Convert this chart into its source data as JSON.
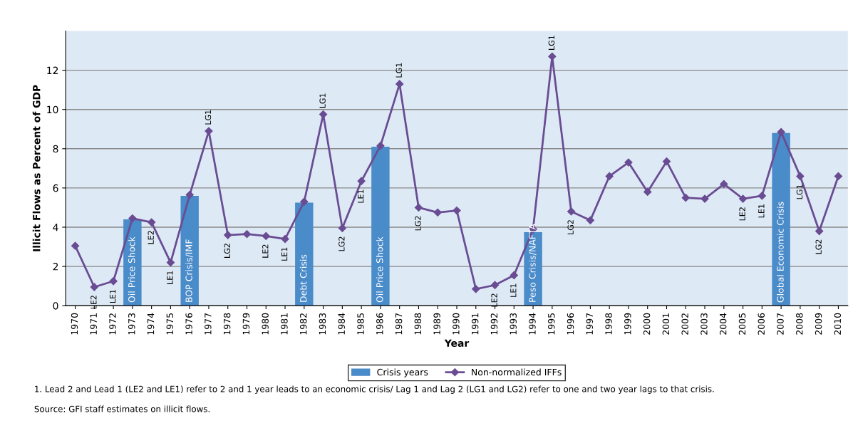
{
  "chart_data": {
    "type": "bar",
    "xlabel": "Year",
    "ylabel": "Illicit Flows as Percent of GDP",
    "categories": [
      "1970",
      "1971",
      "1972",
      "1973",
      "1974",
      "1975",
      "1976",
      "1977",
      "1978",
      "1979",
      "1980",
      "1981",
      "1982",
      "1983",
      "1984",
      "1985",
      "1986",
      "1987",
      "1988",
      "1989",
      "1990",
      "1991",
      "1992",
      "1993",
      "1994",
      "1995",
      "1996",
      "1997",
      "1998",
      "1999",
      "2000",
      "2001",
      "2002",
      "2003",
      "2004",
      "2005",
      "2006",
      "2007",
      "2008",
      "2009",
      "2010"
    ],
    "series": [
      {
        "name": "Crisis years",
        "color": "#4a8bc9",
        "values": [
          null,
          null,
          null,
          4.4,
          null,
          null,
          5.6,
          null,
          null,
          null,
          null,
          null,
          5.25,
          null,
          null,
          null,
          8.1,
          null,
          null,
          null,
          null,
          null,
          null,
          null,
          3.75,
          null,
          null,
          null,
          null,
          null,
          null,
          null,
          null,
          null,
          null,
          null,
          null,
          8.8,
          null,
          null,
          null
        ]
      },
      {
        "name": "Non-normalized IFFs",
        "type": "line",
        "color": "#6a4c93",
        "marker": "diamond",
        "values": [
          3.05,
          0.95,
          1.25,
          4.45,
          4.25,
          2.2,
          5.65,
          8.9,
          3.6,
          3.65,
          3.55,
          3.4,
          5.3,
          9.75,
          3.95,
          6.35,
          8.15,
          11.3,
          5.0,
          4.75,
          4.85,
          0.85,
          1.05,
          1.55,
          3.9,
          12.7,
          4.8,
          4.35,
          6.6,
          7.3,
          5.8,
          7.35,
          5.5,
          5.45,
          6.2,
          5.45,
          5.6,
          8.85,
          6.6,
          3.8,
          6.6
        ]
      }
    ],
    "ylim": [
      0,
      14
    ],
    "yticks": [
      0,
      2,
      4,
      6,
      8,
      10,
      12
    ],
    "grid": "y",
    "legend": "bottom",
    "annotations": [
      {
        "text": "Oil Price Shock",
        "x": "1973",
        "y": 0
      },
      {
        "text": "BOP Crisis/IMF",
        "x": "1976",
        "y": 0
      },
      {
        "text": "Debt Crisis",
        "x": "1982",
        "y": 0
      },
      {
        "text": "Oil Price Shock",
        "x": "1986",
        "y": 0
      },
      {
        "text": "Peso Crisis/NAFTA",
        "x": "1994",
        "y": 0
      },
      {
        "text": "Global Economic Crisis",
        "x": "2007",
        "y": 0
      },
      {
        "text": "LE2",
        "x": "1971",
        "y": 0.95
      },
      {
        "text": "LE1",
        "x": "1972",
        "y": 1.25
      },
      {
        "text": "LE2",
        "x": "1974",
        "y": 4.25
      },
      {
        "text": "LE1",
        "x": "1975",
        "y": 2.2
      },
      {
        "text": "LG1",
        "x": "1977",
        "y": 8.9
      },
      {
        "text": "LG2",
        "x": "1978",
        "y": 3.6
      },
      {
        "text": "LE2",
        "x": "1980",
        "y": 3.55
      },
      {
        "text": "LE1",
        "x": "1981",
        "y": 3.4
      },
      {
        "text": "LG1",
        "x": "1983",
        "y": 9.75
      },
      {
        "text": "LG2",
        "x": "1984",
        "y": 3.95
      },
      {
        "text": "LE1",
        "x": "1985",
        "y": 6.35
      },
      {
        "text": "LG1",
        "x": "1987",
        "y": 11.3
      },
      {
        "text": "LG2",
        "x": "1988",
        "y": 5.0
      },
      {
        "text": "LE2",
        "x": "1992",
        "y": 1.05
      },
      {
        "text": "LE1",
        "x": "1993",
        "y": 1.55
      },
      {
        "text": "LG1",
        "x": "1995",
        "y": 12.7
      },
      {
        "text": "LG2",
        "x": "1996",
        "y": 4.8
      },
      {
        "text": "LE2",
        "x": "2005",
        "y": 5.45
      },
      {
        "text": "LE1",
        "x": "2006",
        "y": 5.6
      },
      {
        "text": "LG1",
        "x": "2008",
        "y": 6.6
      },
      {
        "text": "LG2",
        "x": "2009",
        "y": 3.8
      },
      "1. Lead 2 and Lead 1 (LE2 and LE1) refer to 2 and 1 year leads to an economic crisis/ Lag 1 and Lag 2 (LG1 and LG2) refer to one and two year lags to that crisis.",
      "Source: GFI staff estimates on illicit flows."
    ]
  }
}
